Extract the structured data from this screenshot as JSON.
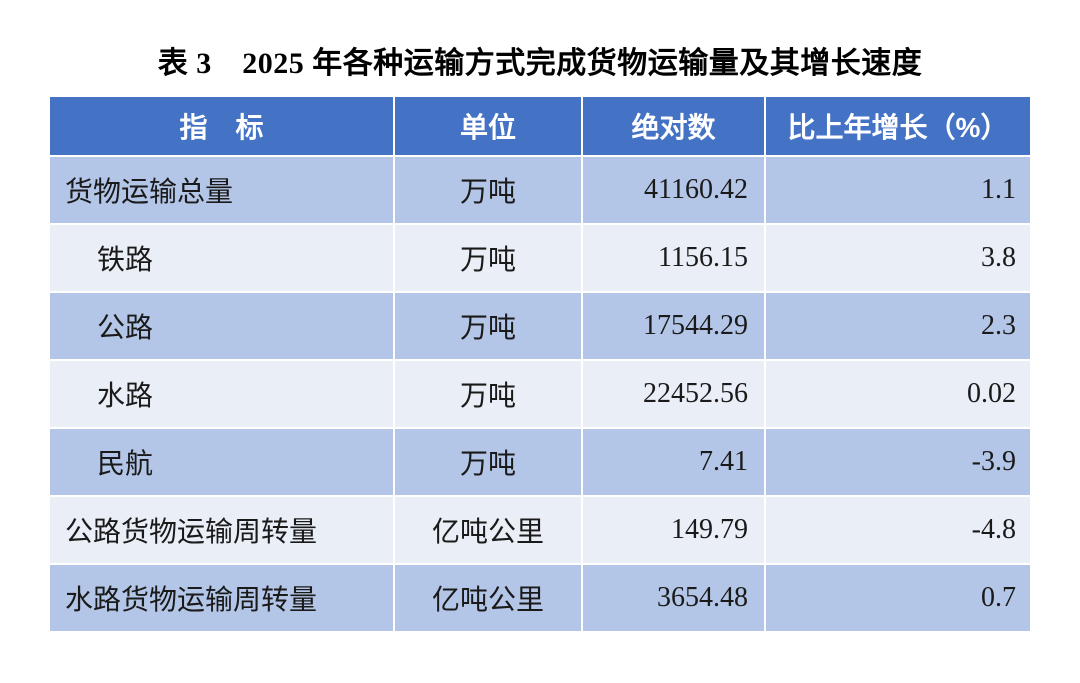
{
  "title": "表 3　2025 年各种运输方式完成货物运输量及其增长速度",
  "table": {
    "columns": {
      "indicator": "指　标",
      "unit": "单位",
      "absolute": "绝对数",
      "growth": "比上年增长（%）"
    },
    "rows": [
      {
        "indicator": "货物运输总量",
        "unit": "万吨",
        "value": "41160.42",
        "growth": "1.1"
      },
      {
        "indicator": "铁路",
        "unit": "万吨",
        "value": "1156.15",
        "growth": "3.8"
      },
      {
        "indicator": "公路",
        "unit": "万吨",
        "value": "17544.29",
        "growth": "2.3"
      },
      {
        "indicator": "水路",
        "unit": "万吨",
        "value": "22452.56",
        "growth": "0.02"
      },
      {
        "indicator": "民航",
        "unit": "万吨",
        "value": "7.41",
        "growth": "-3.9"
      },
      {
        "indicator": "公路货物运输周转量",
        "unit": "亿吨公里",
        "value": "149.79",
        "growth": "-4.8"
      },
      {
        "indicator": "水路货物运输周转量",
        "unit": "亿吨公里",
        "value": "3654.48",
        "growth": "0.7"
      }
    ],
    "colors": {
      "header_bg": "#4472C4",
      "header_text": "#FFFFFF",
      "band_dark": "#B4C6E7",
      "band_light": "#E9EEF7",
      "grid_line": "#FFFFFF",
      "body_text": "#1A1A1A"
    }
  }
}
